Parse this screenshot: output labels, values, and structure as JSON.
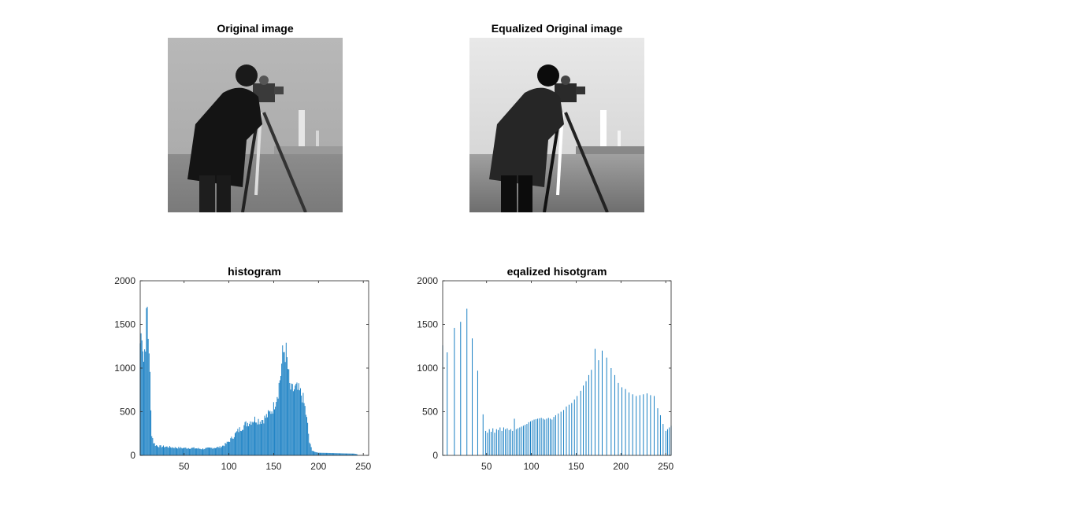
{
  "figure": {
    "images": [
      {
        "title": "Original image",
        "variant": "original"
      },
      {
        "title": "Equalized Original image",
        "variant": "equalized"
      }
    ]
  },
  "chart_data": [
    {
      "type": "bar",
      "title": "histogram",
      "xlabel": "",
      "ylabel": "",
      "xlim": [
        1,
        256
      ],
      "ylim": [
        0,
        2000
      ],
      "xticks": [
        50,
        100,
        150,
        200,
        250
      ],
      "yticks": [
        0,
        500,
        1000,
        1500,
        2000
      ],
      "grid": false,
      "color": "#0072BD",
      "series": [
        {
          "x_bins": [
            1,
            256
          ],
          "profile": [
            [
              1,
              1300
            ],
            [
              3,
              1480
            ],
            [
              5,
              1100
            ],
            [
              7,
              1350
            ],
            [
              8,
              1550
            ],
            [
              9,
              1680
            ],
            [
              10,
              1380
            ],
            [
              11,
              1250
            ],
            [
              12,
              900
            ],
            [
              13,
              500
            ],
            [
              14,
              250
            ],
            [
              16,
              150
            ],
            [
              18,
              120
            ],
            [
              22,
              105
            ],
            [
              30,
              100
            ],
            [
              40,
              90
            ],
            [
              50,
              85
            ],
            [
              60,
              85
            ],
            [
              70,
              75
            ],
            [
              80,
              85
            ],
            [
              90,
              95
            ],
            [
              95,
              120
            ],
            [
              100,
              160
            ],
            [
              105,
              220
            ],
            [
              110,
              280
            ],
            [
              115,
              330
            ],
            [
              120,
              370
            ],
            [
              125,
              400
            ],
            [
              130,
              420
            ],
            [
              135,
              400
            ],
            [
              140,
              430
            ],
            [
              145,
              480
            ],
            [
              150,
              560
            ],
            [
              155,
              750
            ],
            [
              158,
              950
            ],
            [
              160,
              1150
            ],
            [
              162,
              1220
            ],
            [
              164,
              1180
            ],
            [
              166,
              1000
            ],
            [
              168,
              800
            ],
            [
              170,
              740
            ],
            [
              172,
              760
            ],
            [
              175,
              770
            ],
            [
              178,
              740
            ],
            [
              182,
              690
            ],
            [
              185,
              550
            ],
            [
              188,
              350
            ],
            [
              190,
              150
            ],
            [
              193,
              60
            ],
            [
              196,
              40
            ],
            [
              200,
              30
            ],
            [
              210,
              28
            ],
            [
              220,
              25
            ],
            [
              230,
              22
            ],
            [
              240,
              20
            ],
            [
              243,
              14
            ],
            [
              244,
              3
            ],
            [
              256,
              0
            ]
          ]
        }
      ]
    },
    {
      "type": "bar",
      "title": "eqalized hisotgram",
      "xlabel": "",
      "ylabel": "",
      "xlim": [
        1,
        256
      ],
      "ylim": [
        0,
        2000
      ],
      "xticks": [
        50,
        100,
        150,
        200,
        250
      ],
      "yticks": [
        0,
        500,
        1000,
        1500,
        2000
      ],
      "grid": false,
      "color": "#0072BD",
      "series": [
        {
          "bars": [
            [
              1,
              1260
            ],
            [
              6,
              1180
            ],
            [
              14,
              1460
            ],
            [
              21,
              1530
            ],
            [
              28,
              1680
            ],
            [
              34,
              1340
            ],
            [
              40,
              970
            ],
            [
              46,
              470
            ],
            [
              49,
              280
            ],
            [
              51,
              260
            ],
            [
              53,
              300
            ],
            [
              55,
              270
            ],
            [
              57,
              310
            ],
            [
              59,
              260
            ],
            [
              61,
              300
            ],
            [
              63,
              290
            ],
            [
              65,
              320
            ],
            [
              67,
              280
            ],
            [
              69,
              320
            ],
            [
              71,
              300
            ],
            [
              73,
              310
            ],
            [
              75,
              290
            ],
            [
              77,
              300
            ],
            [
              79,
              280
            ],
            [
              81,
              420
            ],
            [
              83,
              300
            ],
            [
              85,
              310
            ],
            [
              87,
              320
            ],
            [
              89,
              330
            ],
            [
              91,
              340
            ],
            [
              93,
              350
            ],
            [
              95,
              360
            ],
            [
              97,
              380
            ],
            [
              99,
              390
            ],
            [
              101,
              400
            ],
            [
              103,
              410
            ],
            [
              105,
              415
            ],
            [
              107,
              420
            ],
            [
              109,
              425
            ],
            [
              111,
              430
            ],
            [
              113,
              420
            ],
            [
              115,
              410
            ],
            [
              117,
              420
            ],
            [
              119,
              430
            ],
            [
              121,
              420
            ],
            [
              123,
              410
            ],
            [
              125,
              440
            ],
            [
              127,
              460
            ],
            [
              130,
              480
            ],
            [
              133,
              500
            ],
            [
              136,
              520
            ],
            [
              139,
              560
            ],
            [
              142,
              580
            ],
            [
              145,
              600
            ],
            [
              148,
              640
            ],
            [
              151,
              680
            ],
            [
              155,
              740
            ],
            [
              158,
              800
            ],
            [
              161,
              850
            ],
            [
              164,
              920
            ],
            [
              167,
              980
            ],
            [
              171,
              1220
            ],
            [
              175,
              1090
            ],
            [
              179,
              1200
            ],
            [
              184,
              1120
            ],
            [
              189,
              1000
            ],
            [
              193,
              920
            ],
            [
              197,
              830
            ],
            [
              201,
              780
            ],
            [
              205,
              760
            ],
            [
              209,
              720
            ],
            [
              213,
              700
            ],
            [
              217,
              680
            ],
            [
              221,
              690
            ],
            [
              225,
              700
            ],
            [
              229,
              710
            ],
            [
              233,
              690
            ],
            [
              237,
              680
            ],
            [
              241,
              540
            ],
            [
              244,
              460
            ],
            [
              247,
              360
            ],
            [
              250,
              280
            ],
            [
              252,
              300
            ],
            [
              254,
              320
            ],
            [
              256,
              340
            ]
          ]
        }
      ]
    }
  ]
}
